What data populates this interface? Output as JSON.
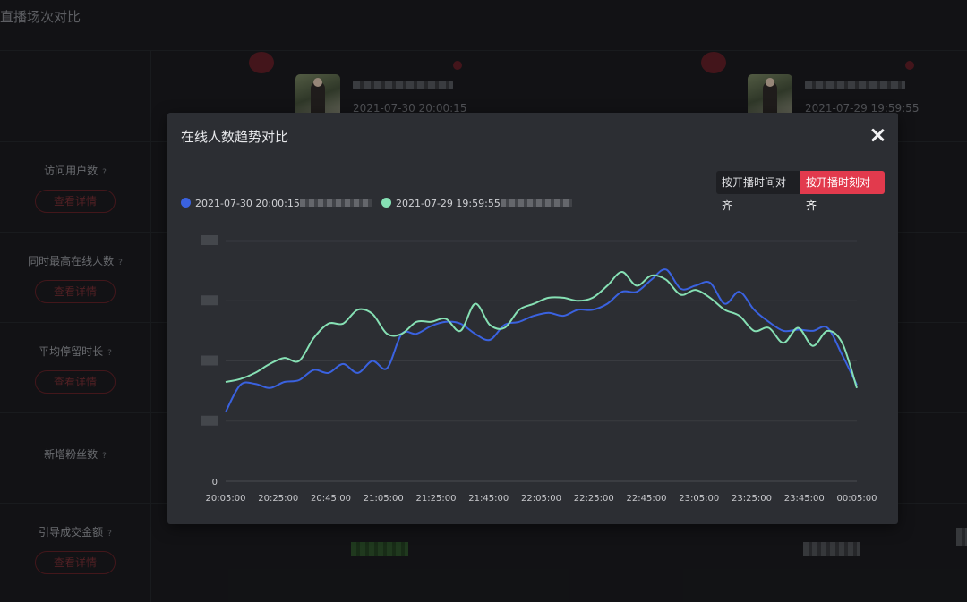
{
  "page": {
    "title": "直播场次对比",
    "rows": [
      {
        "label": "访问用户数",
        "help": "?",
        "button": "查看详情"
      },
      {
        "label": "同时最高在线人数",
        "help": "?",
        "button": "查看详情"
      },
      {
        "label": "平均停留时长",
        "help": "?",
        "button": "查看详情"
      },
      {
        "label": "新增粉丝数",
        "help": "?",
        "button": ""
      },
      {
        "label": "引导成交金额",
        "help": "?",
        "button": "查看详情"
      }
    ],
    "sessions": [
      {
        "time": "2021-07-30 20:00:15"
      },
      {
        "time": "2021-07-29 19:59:55"
      }
    ]
  },
  "modal": {
    "title": "在线人数趋势对比",
    "toggle_left": "按开播时间对齐",
    "toggle_right": "按开播时刻对齐",
    "legend": [
      {
        "label": "2021-07-30 20:00:15",
        "color": "#3a62e0"
      },
      {
        "label": "2021-07-29 19:59:55",
        "color": "#86e0b4"
      }
    ]
  },
  "chart_data": {
    "type": "line",
    "x_tick_labels": [
      "20:05:00",
      "20:25:00",
      "20:45:00",
      "21:05:00",
      "21:25:00",
      "21:45:00",
      "22:05:00",
      "22:25:00",
      "22:45:00",
      "23:05:00",
      "23:25:00",
      "23:45:00",
      "00:05:00"
    ],
    "y_tick_labels": [
      "0",
      "",
      "",
      "",
      ""
    ],
    "ylim": [
      0,
      4
    ],
    "grid": true,
    "series": [
      {
        "name": "2021-07-30 20:00:15",
        "color": "#3a62e0",
        "values": [
          1.15,
          1.6,
          1.62,
          1.55,
          1.65,
          1.68,
          1.85,
          1.8,
          1.95,
          1.8,
          2.0,
          1.88,
          2.45,
          2.45,
          2.58,
          2.65,
          2.62,
          2.45,
          2.35,
          2.6,
          2.65,
          2.75,
          2.8,
          2.75,
          2.85,
          2.85,
          2.95,
          3.15,
          3.15,
          3.35,
          3.52,
          3.2,
          3.25,
          3.3,
          2.95,
          3.15,
          2.85,
          2.65,
          2.5,
          2.52,
          2.5,
          2.55,
          2.1,
          1.6
        ]
      },
      {
        "name": "2021-07-29 19:59:55",
        "color": "#86e0b4",
        "values": [
          1.65,
          1.7,
          1.8,
          1.95,
          2.05,
          2.0,
          2.38,
          2.62,
          2.62,
          2.85,
          2.78,
          2.45,
          2.45,
          2.65,
          2.65,
          2.7,
          2.5,
          2.95,
          2.6,
          2.55,
          2.85,
          2.95,
          3.05,
          3.05,
          3.0,
          3.05,
          3.25,
          3.48,
          3.25,
          3.42,
          3.35,
          3.1,
          3.18,
          3.05,
          2.85,
          2.75,
          2.5,
          2.55,
          2.3,
          2.55,
          2.25,
          2.5,
          2.3,
          1.55
        ]
      }
    ]
  }
}
